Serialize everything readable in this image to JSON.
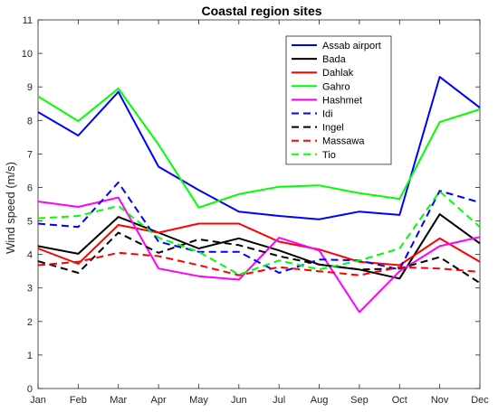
{
  "chart_data": {
    "type": "line",
    "title": "Coastal region sites",
    "xlabel": "",
    "ylabel": "Wind speed (m/s)",
    "ylim": [
      0,
      11
    ],
    "yticks": [
      0,
      1,
      2,
      3,
      4,
      5,
      6,
      7,
      8,
      9,
      10,
      11
    ],
    "categories": [
      "Jan",
      "Feb",
      "Mar",
      "Apr",
      "May",
      "Jun",
      "Jul",
      "Aug",
      "Sep",
      "Oct",
      "Nov",
      "Dec"
    ],
    "legend_position": "top-right",
    "grid": false,
    "series": [
      {
        "name": "Assab airport",
        "color": "#0000ff",
        "dash": "solid",
        "values": [
          8.25,
          7.55,
          8.85,
          6.62,
          5.92,
          5.28,
          5.15,
          5.05,
          5.28,
          5.18,
          9.3,
          8.38
        ]
      },
      {
        "name": "Bada",
        "color": "#000000",
        "dash": "solid",
        "values": [
          4.25,
          4.02,
          5.12,
          4.65,
          4.18,
          4.48,
          4.12,
          3.7,
          3.55,
          3.28,
          5.2,
          4.33
        ]
      },
      {
        "name": "Dahlak",
        "color": "#ff0000",
        "dash": "solid",
        "values": [
          4.18,
          3.72,
          4.88,
          4.65,
          4.92,
          4.92,
          4.38,
          4.15,
          3.78,
          3.68,
          4.48,
          3.78
        ]
      },
      {
        "name": "Gahro",
        "color": "#00ff00",
        "dash": "solid",
        "values": [
          8.72,
          7.98,
          8.95,
          7.28,
          5.4,
          5.8,
          6.02,
          6.06,
          5.83,
          5.66,
          7.95,
          8.33
        ]
      },
      {
        "name": "Hashmet",
        "color": "#ff00ff",
        "dash": "solid",
        "values": [
          5.58,
          5.42,
          5.7,
          3.58,
          3.35,
          3.25,
          4.5,
          4.12,
          2.28,
          3.5,
          4.25,
          4.52
        ]
      },
      {
        "name": "Idi",
        "color": "#0000ff",
        "dash": "dashed",
        "values": [
          4.92,
          4.82,
          6.15,
          4.38,
          4.08,
          4.08,
          3.45,
          3.85,
          3.82,
          3.55,
          5.9,
          5.55
        ]
      },
      {
        "name": "Ingel",
        "color": "#000000",
        "dash": "dashed",
        "values": [
          3.8,
          3.45,
          4.65,
          4.05,
          4.45,
          4.28,
          3.95,
          3.7,
          3.55,
          3.58,
          3.92,
          3.15
        ]
      },
      {
        "name": "Massawa",
        "color": "#ff0000",
        "dash": "dashed",
        "values": [
          3.68,
          3.78,
          4.05,
          3.95,
          3.68,
          3.38,
          3.62,
          3.5,
          3.38,
          3.62,
          3.58,
          3.48
        ]
      },
      {
        "name": "Tio",
        "color": "#00ff00",
        "dash": "dashed",
        "values": [
          5.08,
          5.15,
          5.45,
          4.5,
          4.08,
          3.4,
          3.82,
          3.55,
          3.82,
          4.18,
          5.88,
          4.82
        ]
      }
    ]
  }
}
